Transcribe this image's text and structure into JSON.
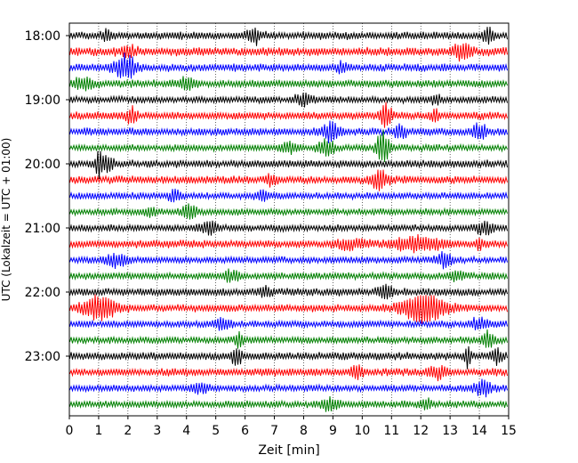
{
  "chart_data": {
    "type": "line",
    "title": "",
    "xlabel": "Zeit  [min]",
    "ylabel": "UTC (Lokalzeit = UTC + 01:00)",
    "xlim": [
      0,
      15
    ],
    "x_ticks": [
      0,
      1,
      2,
      3,
      4,
      5,
      6,
      7,
      8,
      9,
      10,
      11,
      12,
      13,
      14,
      15
    ],
    "x_tick_labels": [
      "0",
      "1",
      "2",
      "3",
      "4",
      "5",
      "6",
      "7",
      "8",
      "9",
      "10",
      "11",
      "12",
      "13",
      "14",
      "15"
    ],
    "y_tick_labels": [
      "18:00",
      "19:00",
      "20:00",
      "21:00",
      "22:00",
      "23:00"
    ],
    "y_tick_trace_index": [
      0,
      4,
      8,
      12,
      16,
      20
    ],
    "trace_minutes": 15,
    "trace_colors": [
      "#000000",
      "#ff0000",
      "#0000ff",
      "#008000"
    ],
    "grid_x": true,
    "traces": [
      {
        "start": "18:00",
        "color": "#000000",
        "noise": 4.0,
        "events": [
          [
            1.3,
            6,
            0.15
          ],
          [
            6.3,
            8,
            0.25
          ],
          [
            14.3,
            7,
            0.2
          ]
        ]
      },
      {
        "start": "18:15",
        "color": "#ff0000",
        "noise": 4.5,
        "events": [
          [
            2.0,
            5,
            0.3
          ],
          [
            13.4,
            9,
            0.3
          ]
        ]
      },
      {
        "start": "18:30",
        "color": "#0000ff",
        "noise": 4.0,
        "events": [
          [
            1.9,
            14,
            0.35
          ],
          [
            9.3,
            5,
            0.2
          ]
        ]
      },
      {
        "start": "18:45",
        "color": "#008000",
        "noise": 4.0,
        "events": [
          [
            0.5,
            6,
            0.35
          ],
          [
            4.0,
            5,
            0.4
          ]
        ]
      },
      {
        "start": "19:00",
        "color": "#000000",
        "noise": 3.5,
        "events": [
          [
            8.0,
            6,
            0.3
          ],
          [
            12.5,
            5,
            0.2
          ]
        ]
      },
      {
        "start": "19:15",
        "color": "#ff0000",
        "noise": 4.0,
        "events": [
          [
            2.1,
            8,
            0.2
          ],
          [
            10.8,
            12,
            0.2
          ],
          [
            12.5,
            7,
            0.1
          ]
        ]
      },
      {
        "start": "19:30",
        "color": "#0000ff",
        "noise": 4.0,
        "events": [
          [
            8.9,
            9,
            0.3
          ],
          [
            11.3,
            6,
            0.2
          ],
          [
            14.0,
            7,
            0.25
          ]
        ]
      },
      {
        "start": "19:45",
        "color": "#008000",
        "noise": 3.5,
        "events": [
          [
            10.7,
            20,
            0.2
          ],
          [
            8.8,
            8,
            0.3
          ],
          [
            7.5,
            5,
            0.3
          ]
        ]
      },
      {
        "start": "20:00",
        "color": "#000000",
        "noise": 4.0,
        "events": [
          [
            1.0,
            16,
            0.1
          ],
          [
            1.3,
            8,
            0.2
          ]
        ]
      },
      {
        "start": "20:15",
        "color": "#ff0000",
        "noise": 4.0,
        "events": [
          [
            10.6,
            9,
            0.3
          ],
          [
            6.9,
            5,
            0.2
          ]
        ]
      },
      {
        "start": "20:30",
        "color": "#0000ff",
        "noise": 3.5,
        "events": [
          [
            3.6,
            6,
            0.2
          ],
          [
            6.6,
            5,
            0.2
          ]
        ]
      },
      {
        "start": "20:45",
        "color": "#008000",
        "noise": 3.5,
        "events": [
          [
            4.1,
            7,
            0.25
          ],
          [
            2.8,
            5,
            0.2
          ]
        ]
      },
      {
        "start": "21:00",
        "color": "#000000",
        "noise": 3.5,
        "events": [
          [
            4.8,
            6,
            0.3
          ],
          [
            14.2,
            7,
            0.3
          ]
        ]
      },
      {
        "start": "21:15",
        "color": "#ff0000",
        "noise": 4.0,
        "events": [
          [
            11.9,
            7,
            0.8
          ],
          [
            9.6,
            5,
            0.5
          ],
          [
            14.0,
            7,
            0.1
          ]
        ]
      },
      {
        "start": "21:30",
        "color": "#0000ff",
        "noise": 3.5,
        "events": [
          [
            1.6,
            6,
            0.4
          ],
          [
            12.8,
            7,
            0.3
          ]
        ]
      },
      {
        "start": "21:45",
        "color": "#008000",
        "noise": 3.5,
        "events": [
          [
            5.5,
            5,
            0.3
          ],
          [
            13.2,
            5,
            0.3
          ]
        ]
      },
      {
        "start": "22:00",
        "color": "#000000",
        "noise": 4.0,
        "events": [
          [
            10.8,
            7,
            0.25
          ],
          [
            6.7,
            5,
            0.2
          ]
        ]
      },
      {
        "start": "22:15",
        "color": "#ff0000",
        "noise": 4.0,
        "events": [
          [
            1.0,
            13,
            0.55
          ],
          [
            12.1,
            14,
            0.75
          ]
        ]
      },
      {
        "start": "22:30",
        "color": "#0000ff",
        "noise": 3.5,
        "events": [
          [
            5.2,
            5,
            0.3
          ],
          [
            14.0,
            6,
            0.3
          ]
        ]
      },
      {
        "start": "22:45",
        "color": "#008000",
        "noise": 3.5,
        "events": [
          [
            14.3,
            9,
            0.2
          ],
          [
            5.8,
            7,
            0.15
          ]
        ]
      },
      {
        "start": "23:00",
        "color": "#000000",
        "noise": 4.0,
        "events": [
          [
            5.7,
            9,
            0.2
          ],
          [
            13.6,
            11,
            0.1
          ],
          [
            14.6,
            7,
            0.2
          ]
        ]
      },
      {
        "start": "23:15",
        "color": "#ff0000",
        "noise": 4.0,
        "events": [
          [
            12.6,
            6,
            0.3
          ],
          [
            9.8,
            5,
            0.25
          ]
        ]
      },
      {
        "start": "23:30",
        "color": "#0000ff",
        "noise": 3.5,
        "events": [
          [
            14.1,
            8,
            0.3
          ],
          [
            4.5,
            5,
            0.3
          ]
        ]
      },
      {
        "start": "23:45",
        "color": "#008000",
        "noise": 3.5,
        "events": [
          [
            8.9,
            6,
            0.3
          ],
          [
            12.2,
            5,
            0.2
          ]
        ]
      }
    ]
  }
}
